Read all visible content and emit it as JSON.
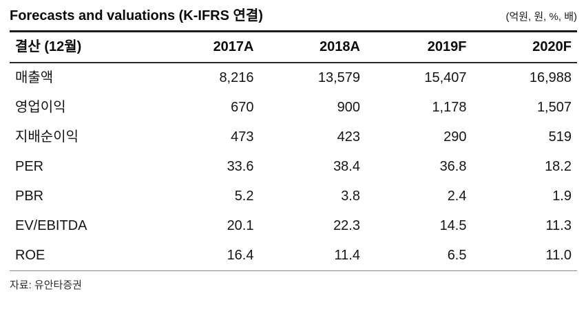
{
  "header": {
    "title": "Forecasts and valuations (K-IFRS 연결)",
    "units": "(억원, 원, %, 배)"
  },
  "table": {
    "columns": [
      "결산 (12월)",
      "2017A",
      "2018A",
      "2019F",
      "2020F"
    ],
    "rows": [
      {
        "label": "매출액",
        "values": [
          "8,216",
          "13,579",
          "15,407",
          "16,988"
        ]
      },
      {
        "label": "영업이익",
        "values": [
          "670",
          "900",
          "1,178",
          "1,507"
        ]
      },
      {
        "label": "지배순이익",
        "values": [
          "473",
          "423",
          "290",
          "519"
        ]
      },
      {
        "label": "PER",
        "values": [
          "33.6",
          "38.4",
          "36.8",
          "18.2"
        ]
      },
      {
        "label": "PBR",
        "values": [
          "5.2",
          "3.8",
          "2.4",
          "1.9"
        ]
      },
      {
        "label": "EV/EBITDA",
        "values": [
          "20.1",
          "22.3",
          "14.5",
          "11.3"
        ]
      },
      {
        "label": "ROE",
        "values": [
          "16.4",
          "11.4",
          "6.5",
          "11.0"
        ]
      }
    ]
  },
  "footer": {
    "source": "자료: 유안타증권"
  },
  "chart_data": {
    "type": "table",
    "title": "Forecasts and valuations (K-IFRS 연결)",
    "units": "억원, 원, %, 배",
    "categories": [
      "2017A",
      "2018A",
      "2019F",
      "2020F"
    ],
    "series": [
      {
        "name": "매출액",
        "values": [
          8216,
          13579,
          15407,
          16988
        ]
      },
      {
        "name": "영업이익",
        "values": [
          670,
          900,
          1178,
          1507
        ]
      },
      {
        "name": "지배순이익",
        "values": [
          473,
          423,
          290,
          519
        ]
      },
      {
        "name": "PER",
        "values": [
          33.6,
          38.4,
          36.8,
          18.2
        ]
      },
      {
        "name": "PBR",
        "values": [
          5.2,
          3.8,
          2.4,
          1.9
        ]
      },
      {
        "name": "EV/EBITDA",
        "values": [
          20.1,
          22.3,
          14.5,
          11.3
        ]
      },
      {
        "name": "ROE",
        "values": [
          16.4,
          11.4,
          6.5,
          11.0
        ]
      }
    ]
  }
}
